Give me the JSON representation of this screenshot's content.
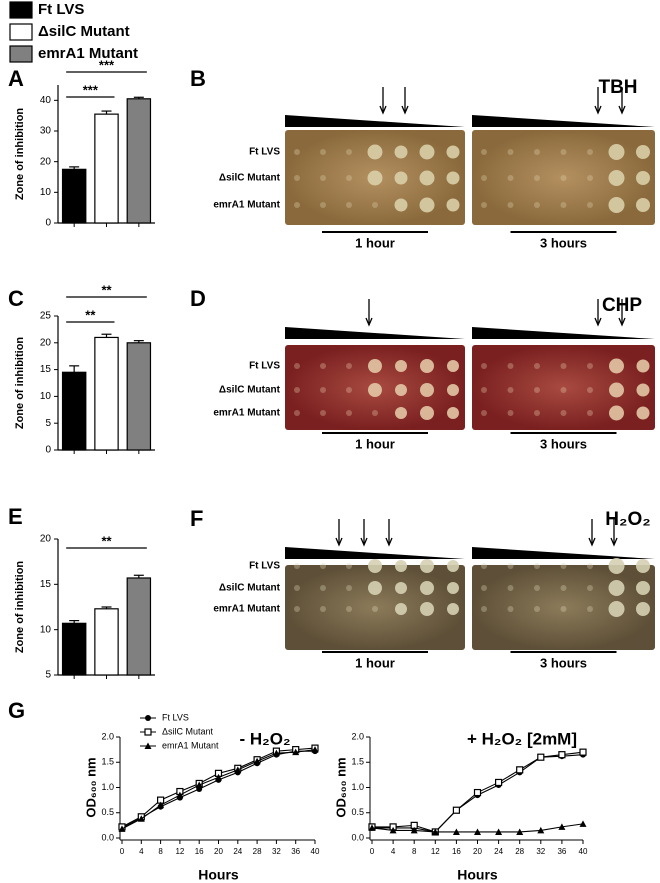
{
  "legend": [
    {
      "label": "Ft LVS",
      "color": "#000000"
    },
    {
      "label": "ΔsilC Mutant",
      "color": "#ffffff"
    },
    {
      "label": "emrA1 Mutant",
      "color": "#808080"
    }
  ],
  "chart_data": [
    {
      "type": "bar",
      "panel": "A",
      "y_label": "Zone of inhibition",
      "categories": [
        null,
        null,
        null
      ],
      "values": [
        17.5,
        35.5,
        40.5
      ],
      "errors": [
        0.8,
        1.0,
        0.5
      ],
      "colors": [
        "#000000",
        "#ffffff",
        "#808080"
      ],
      "ylim": [
        0,
        45
      ],
      "yticks": [
        0,
        10,
        20,
        30,
        40
      ],
      "annotations": [
        "***",
        "***"
      ]
    },
    {
      "type": "bar",
      "panel": "C",
      "y_label": "Zone of inhibition",
      "categories": [
        null,
        null,
        null
      ],
      "values": [
        14.5,
        21,
        20
      ],
      "errors": [
        1.2,
        0.6,
        0.4
      ],
      "colors": [
        "#000000",
        "#ffffff",
        "#808080"
      ],
      "ylim": [
        0,
        25
      ],
      "yticks": [
        0,
        5,
        10,
        15,
        20,
        25
      ],
      "annotations": [
        "**",
        "**"
      ]
    },
    {
      "type": "bar",
      "panel": "E",
      "y_label": "Zone of inhibition",
      "categories": [
        null,
        null,
        null
      ],
      "values": [
        10.7,
        12.3,
        15.7
      ],
      "errors": [
        0.3,
        0.2,
        0.3
      ],
      "colors": [
        "#000000",
        "#ffffff",
        "#808080"
      ],
      "ylim": [
        5,
        20
      ],
      "yticks": [
        5,
        10,
        15,
        20
      ],
      "annotations": [
        "**"
      ]
    },
    {
      "type": "line",
      "panel": "G",
      "title": "- H₂O₂",
      "x_label": "Hours",
      "y_label": "OD₆₀₀ nm",
      "legend": true,
      "x": [
        0,
        4,
        8,
        12,
        16,
        20,
        24,
        28,
        32,
        36,
        40
      ],
      "series": [
        {
          "name": "Ft LVS",
          "marker": "circle",
          "color": "#000000",
          "values": [
            0.2,
            0.4,
            0.62,
            0.8,
            0.97,
            1.15,
            1.3,
            1.48,
            1.65,
            1.72,
            1.72
          ]
        },
        {
          "name": "ΔsilC Mutant",
          "marker": "square",
          "color": "#000000",
          "values": [
            0.22,
            0.42,
            0.75,
            0.92,
            1.08,
            1.28,
            1.38,
            1.55,
            1.72,
            1.75,
            1.78
          ]
        },
        {
          "name": "emrA1 Mutant",
          "marker": "triangle",
          "color": "#000000",
          "values": [
            0.18,
            0.38,
            0.65,
            0.85,
            1.05,
            1.2,
            1.35,
            1.52,
            1.68,
            1.7,
            1.75
          ]
        }
      ],
      "xlim": [
        0,
        40
      ],
      "xticks": [
        0,
        4,
        8,
        12,
        16,
        20,
        24,
        28,
        32,
        36,
        40
      ],
      "ylim": [
        0,
        2
      ],
      "yticks": [
        {
          "value": 0,
          "label": "0.0"
        },
        0.5,
        {
          "value": 1,
          "label": "1.0"
        },
        1.5,
        {
          "value": 2,
          "label": "2.0"
        }
      ]
    },
    {
      "type": "line",
      "title": "+ H₂O₂ [2mM]",
      "x_label": "Hours",
      "y_label": "OD₆₀₀ nm",
      "legend": false,
      "x": [
        0,
        4,
        8,
        12,
        16,
        20,
        24,
        28,
        32,
        36,
        40
      ],
      "series": [
        {
          "marker": "circle",
          "color": "#000000",
          "values": [
            0.2,
            0.2,
            0.2,
            0.12,
            0.55,
            0.85,
            1.05,
            1.3,
            1.6,
            1.62,
            1.65
          ]
        },
        {
          "marker": "square",
          "color": "#000000",
          "values": [
            0.22,
            0.22,
            0.25,
            0.12,
            0.55,
            0.9,
            1.1,
            1.35,
            1.6,
            1.65,
            1.7
          ]
        },
        {
          "marker": "triangle",
          "color": "#000000",
          "values": [
            0.2,
            0.15,
            0.15,
            0.12,
            0.12,
            0.12,
            0.12,
            0.12,
            0.15,
            0.22,
            0.28
          ]
        }
      ],
      "xlim": [
        0,
        40
      ],
      "xticks": [
        0,
        4,
        8,
        12,
        16,
        20,
        24,
        28,
        32,
        36,
        40
      ],
      "ylim": [
        0,
        2
      ],
      "yticks": [
        {
          "value": 0,
          "label": "0.0"
        },
        0.5,
        {
          "value": 1,
          "label": "1.0"
        },
        1.5,
        {
          "value": 2,
          "label": "2.0"
        }
      ]
    }
  ],
  "plates": [
    {
      "letter": "B",
      "agent": "TBH",
      "rows": [
        "Ft LVS",
        "ΔsilC Mutant",
        "emrA1 Mutant"
      ],
      "times": [
        "1 hour",
        "3 hours"
      ]
    },
    {
      "letter": "D",
      "agent": "CHP",
      "rows": [
        "Ft LVS",
        "ΔsilC Mutant",
        "emrA1 Mutant"
      ],
      "times": [
        "1 hour",
        "3 hours"
      ]
    },
    {
      "letter": "F",
      "agent": "H₂O₂",
      "rows": [
        "Ft LVS",
        "ΔsilC Mutant",
        "emrA1 Mutant"
      ],
      "times": [
        "1 hour",
        "3 hours"
      ]
    }
  ]
}
